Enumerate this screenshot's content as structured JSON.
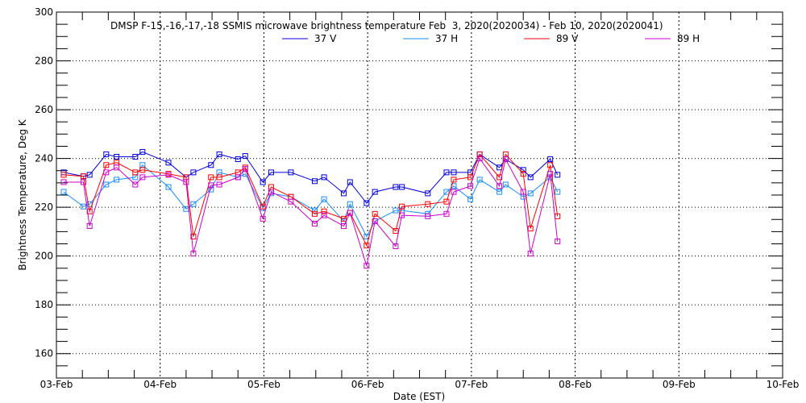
{
  "chart_data": {
    "type": "line",
    "title": "DMSP F-15,-16,-17,-18 SSMIS microwave brightness temperature Feb  3, 2020(2020034) - Feb 10, 2020(2020041)",
    "xlabel": "Date (EST)",
    "ylabel": "Brightness Temperature, Deg K",
    "ylim": [
      150,
      300
    ],
    "xlim_days": [
      0,
      7
    ],
    "yticks": [
      160,
      180,
      200,
      220,
      240,
      260,
      280,
      300
    ],
    "xticks": [
      "03-Feb",
      "04-Feb",
      "05-Feb",
      "06-Feb",
      "07-Feb",
      "08-Feb",
      "09-Feb",
      "10-Feb"
    ],
    "grid": true,
    "legend_placement": "top-center",
    "x_days": [
      0.07,
      0.26,
      0.32,
      0.48,
      0.58,
      0.76,
      0.83,
      1.08,
      1.25,
      1.32,
      1.49,
      1.57,
      1.75,
      1.82,
      1.99,
      2.07,
      2.26,
      2.49,
      2.58,
      2.77,
      2.83,
      2.99,
      3.07,
      3.27,
      3.33,
      3.58,
      3.76,
      3.83,
      3.99,
      4.08,
      4.27,
      4.33,
      4.5,
      4.57,
      4.76,
      4.83
    ],
    "series": [
      {
        "name": "37 V",
        "color": "#0000e0",
        "values": [
          234.3,
          232.7,
          233.3,
          241.7,
          240.7,
          240.7,
          242.7,
          238.3,
          232.3,
          234.3,
          237.3,
          241.7,
          239.7,
          241,
          230.3,
          234.3,
          234.3,
          230.7,
          232.3,
          225.7,
          230.3,
          221.7,
          226.3,
          228.3,
          228.3,
          225.7,
          234.3,
          234.3,
          234.3,
          241.7,
          236.3,
          239.7,
          235.3,
          232.3,
          239.7,
          233.3
        ]
      },
      {
        "name": "37 H",
        "color": "#1a8cff",
        "values": [
          226.3,
          220.3,
          221.3,
          229.3,
          231.3,
          232.3,
          237.3,
          228.3,
          219.3,
          221.3,
          227.3,
          234.3,
          232.3,
          233.7,
          219.7,
          225.7,
          224.3,
          218.7,
          223.3,
          214.3,
          221.3,
          208,
          214.3,
          218.7,
          218.7,
          217.3,
          226.3,
          228.7,
          223.3,
          231.3,
          226.3,
          229.3,
          224.3,
          225.7,
          232.3,
          226.3
        ]
      },
      {
        "name": "89 V",
        "color": "#ff0000",
        "values": [
          233.3,
          232.7,
          218.3,
          237.3,
          238.3,
          234.3,
          235.3,
          233.7,
          232.3,
          208,
          232.3,
          232.3,
          234.3,
          236.3,
          220.3,
          228.3,
          224.3,
          217.3,
          218.3,
          215.3,
          217.7,
          204.3,
          217.3,
          210.3,
          220.3,
          221.3,
          222.3,
          231.3,
          232.3,
          241.7,
          232.3,
          241.7,
          233.7,
          211.3,
          237.3,
          216.3
        ]
      },
      {
        "name": "89 H",
        "color": "#cc00cc",
        "values": [
          230.3,
          230.3,
          212.3,
          234.3,
          236.3,
          229.3,
          232.3,
          233.3,
          230.3,
          201,
          229,
          229.3,
          232.3,
          235.7,
          215.3,
          226.3,
          222.3,
          213.3,
          216.7,
          212.3,
          217.7,
          196,
          214.3,
          204,
          216.7,
          216.3,
          217.3,
          226.3,
          228.7,
          240,
          228.7,
          239.7,
          226.3,
          201,
          233.7,
          206
        ]
      }
    ]
  }
}
